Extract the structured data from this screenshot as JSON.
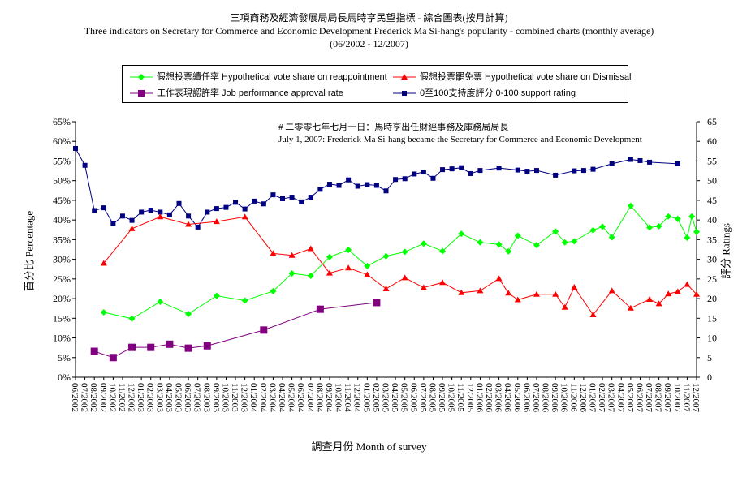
{
  "titles": {
    "line1": "三項商務及經濟發展局局長馬時亨民望指標 - 綜合圖表(按月計算)",
    "line2": "Three indicators on Secretary for Commerce and Economic Development Frederick Ma Si-hang's popularity - combined charts (monthly average)",
    "line3": "(06/2002 - 12/2007)"
  },
  "annotation": {
    "line1": "# 二零零七年七月一日：馬時亨出任財經事務及庫務局局長",
    "line2": "July 1, 2007: Frederick Ma Si-hang became the Secretary for Commerce and Economic Development"
  },
  "axes": {
    "x_title": "調查月份 Month of survey",
    "y_left_title": "百分比 Percentage",
    "y_right_title": "評分 Ratings"
  },
  "legend": [
    {
      "key": "reappoint",
      "label": "假想投票續任率 Hypothetical vote share on reappointment"
    },
    {
      "key": "dismiss",
      "label": "假想投票罷免票 Hypothetical vote share on Dismissal"
    },
    {
      "key": "approval",
      "label": "工作表現認許率 Job performance approval rate"
    },
    {
      "key": "rating",
      "label": "0至100支持度評分 0-100 support rating"
    }
  ],
  "colors": {
    "reappoint": "#00ff00",
    "dismiss": "#ff0000",
    "approval": "#800080",
    "rating": "#000080"
  },
  "chart_data": {
    "type": "line",
    "x": [
      "06/2002",
      "07/2002",
      "08/2002",
      "09/2002",
      "10/2002",
      "11/2002",
      "12/2002",
      "01/2003",
      "02/2003",
      "03/2003",
      "04/2003",
      "05/2003",
      "06/2003",
      "07/2003",
      "08/2003",
      "09/2003",
      "10/2003",
      "11/2003",
      "12/2003",
      "01/2004",
      "02/2004",
      "03/2004",
      "04/2004",
      "05/2004",
      "06/2004",
      "07/2004",
      "08/2004",
      "09/2004",
      "10/2004",
      "11/2004",
      "12/2004",
      "01/2005",
      "02/2005",
      "03/2005",
      "04/2005",
      "05/2005",
      "06/2005",
      "07/2005",
      "08/2005",
      "09/2005",
      "10/2005",
      "11/2005",
      "12/2005",
      "01/2006",
      "02/2006",
      "03/2006",
      "04/2006",
      "05/2006",
      "06/2006",
      "07/2006",
      "08/2006",
      "09/2006",
      "10/2006",
      "11/2006",
      "12/2006",
      "01/2007",
      "02/2007",
      "03/2007",
      "04/2007",
      "05/2007",
      "06/2007",
      "07/2007",
      "08/2007",
      "09/2007",
      "10/2007",
      "11/2007",
      "12/2007"
    ],
    "y_left": {
      "min": 0,
      "max": 65,
      "step": 5,
      "unit": "%"
    },
    "y_right": {
      "min": 0,
      "max": 65,
      "step": 5
    },
    "y_left_ticks": [
      "0%",
      "5%",
      "10%",
      "15%",
      "20%",
      "25%",
      "30%",
      "35%",
      "40%",
      "45%",
      "50%",
      "55%",
      "60%",
      "65%"
    ],
    "y_right_ticks": [
      "0",
      "5",
      "10",
      "15",
      "20",
      "25",
      "30",
      "35",
      "40",
      "45",
      "50",
      "55",
      "60",
      "65"
    ],
    "series": [
      {
        "name": "0至100支持度評分 0-100 support rating",
        "key": "rating",
        "marker": "square",
        "axis": "right",
        "points": [
          [
            "06/2002",
            58.2
          ],
          [
            "07/2002",
            53.9
          ],
          [
            "08/2002",
            42.4
          ],
          [
            "09/2002",
            43.1
          ],
          [
            "10/2002",
            39.0
          ],
          [
            "11/2002",
            41.0
          ],
          [
            "12/2002",
            39.9
          ],
          [
            "01/2003",
            42.0
          ],
          [
            "02/2003",
            42.5
          ],
          [
            "03/2003",
            42.0
          ],
          [
            "04/2003",
            41.3
          ],
          [
            "05/2003",
            44.2
          ],
          [
            "06/2003",
            41.0
          ],
          [
            "07/2003",
            38.2
          ],
          [
            "08/2003",
            42.0
          ],
          [
            "09/2003",
            42.9
          ],
          [
            "10/2003",
            43.2
          ],
          [
            "11/2003",
            44.5
          ],
          [
            "12/2003",
            42.8
          ],
          [
            "01/2004",
            44.8
          ],
          [
            "02/2004",
            44.1
          ],
          [
            "03/2004",
            46.4
          ],
          [
            "04/2004",
            45.4
          ],
          [
            "05/2004",
            45.8
          ],
          [
            "06/2004",
            44.6
          ],
          [
            "07/2004",
            45.8
          ],
          [
            "08/2004",
            47.8
          ],
          [
            "09/2004",
            49.1
          ],
          [
            "10/2004",
            48.8
          ],
          [
            "11/2004",
            50.2
          ],
          [
            "12/2004",
            48.6
          ],
          [
            "01/2005",
            49.0
          ],
          [
            "02/2005",
            48.8
          ],
          [
            "03/2005",
            47.4
          ],
          [
            "04/2005",
            50.3
          ],
          [
            "05/2005",
            50.5
          ],
          [
            "06/2005",
            51.7
          ],
          [
            "07/2005",
            52.2
          ],
          [
            "08/2005",
            50.6
          ],
          [
            "09/2005",
            52.8
          ],
          [
            "10/2005",
            53.0
          ],
          [
            "11/2005",
            53.3
          ],
          [
            "12/2005",
            51.8
          ],
          [
            "01/2006",
            52.6
          ],
          [
            "03/2006",
            53.2
          ],
          [
            "05/2006",
            52.7
          ],
          [
            "06/2006",
            52.4
          ],
          [
            "07/2006",
            52.6
          ],
          [
            "09/2006",
            51.4
          ],
          [
            "11/2006",
            52.5
          ],
          [
            "12/2006",
            52.6
          ],
          [
            "01/2007",
            52.9
          ],
          [
            "03/2007",
            54.3
          ],
          [
            "05/2007",
            55.4
          ],
          [
            "06/2007",
            55.1
          ],
          [
            "07/2007",
            54.7
          ],
          [
            "10/2007",
            54.3
          ]
        ]
      },
      {
        "name": "假想投票續任率 Hypothetical vote share on reappointment",
        "key": "reappoint",
        "marker": "diamond",
        "axis": "left",
        "points": [
          [
            "09/2002",
            16.5
          ],
          [
            "12/2002",
            14.9
          ],
          [
            "03/2003",
            19.2
          ],
          [
            "06/2003",
            16.1
          ],
          [
            "09/2003",
            20.7
          ],
          [
            "12/2003",
            19.5
          ],
          [
            "03/2004",
            21.9
          ],
          [
            "05/2004",
            26.4
          ],
          [
            "07/2004",
            25.8
          ],
          [
            "09/2004",
            30.6
          ],
          [
            "11/2004",
            32.4
          ],
          [
            "01/2005",
            28.3
          ],
          [
            "03/2005",
            30.8
          ],
          [
            "05/2005",
            31.9
          ],
          [
            "07/2005",
            34.0
          ],
          [
            "09/2005",
            32.1
          ],
          [
            "11/2005",
            36.5
          ],
          [
            "01/2006",
            34.3
          ],
          [
            "03/2006",
            33.8
          ],
          [
            "04/2006",
            32.0
          ],
          [
            "05/2006",
            36.0
          ],
          [
            "07/2006",
            33.6
          ],
          [
            "09/2006",
            37.1
          ],
          [
            "10/2006",
            34.3
          ],
          [
            "11/2006",
            34.6
          ],
          [
            "01/2007",
            37.4
          ],
          [
            "02/2007",
            38.3
          ],
          [
            "03/2007",
            35.6
          ],
          [
            "05/2007",
            43.6
          ],
          [
            "07/2007",
            38.1
          ],
          [
            "08/2007",
            38.4
          ],
          [
            "09/2007",
            40.9
          ],
          [
            "10/2007",
            40.3
          ],
          [
            "11/2007",
            35.5
          ],
          [
            "12/2007",
            40.9
          ],
          [
            "12/2007",
            37.0
          ]
        ]
      },
      {
        "name": "假想投票罷免票 Hypothetical vote share on Dismissal",
        "key": "dismiss",
        "marker": "triangle",
        "axis": "left",
        "points": [
          [
            "09/2002",
            29.0
          ],
          [
            "12/2002",
            37.8
          ],
          [
            "03/2003",
            40.8
          ],
          [
            "06/2003",
            38.9
          ],
          [
            "09/2003",
            39.6
          ],
          [
            "12/2003",
            40.8
          ],
          [
            "03/2004",
            31.5
          ],
          [
            "05/2004",
            31.0
          ],
          [
            "07/2004",
            32.7
          ],
          [
            "09/2004",
            26.5
          ],
          [
            "11/2004",
            27.8
          ],
          [
            "01/2005",
            26.1
          ],
          [
            "03/2005",
            22.5
          ],
          [
            "05/2005",
            25.3
          ],
          [
            "07/2005",
            22.8
          ],
          [
            "09/2005",
            24.1
          ],
          [
            "11/2005",
            21.5
          ],
          [
            "01/2006",
            22.0
          ],
          [
            "03/2006",
            25.1
          ],
          [
            "04/2006",
            21.4
          ],
          [
            "05/2006",
            19.7
          ],
          [
            "07/2006",
            21.1
          ],
          [
            "09/2006",
            21.1
          ],
          [
            "10/2006",
            17.8
          ],
          [
            "11/2006",
            22.9
          ],
          [
            "01/2007",
            15.9
          ],
          [
            "03/2007",
            22.0
          ],
          [
            "05/2007",
            17.6
          ],
          [
            "07/2007",
            19.8
          ],
          [
            "08/2007",
            18.7
          ],
          [
            "09/2007",
            21.2
          ],
          [
            "10/2007",
            21.8
          ],
          [
            "11/2007",
            23.6
          ],
          [
            "12/2007",
            21.1
          ]
        ]
      },
      {
        "name": "工作表現認許率 Job performance approval rate",
        "key": "approval",
        "marker": "square",
        "axis": "left",
        "points": [
          [
            "08/2002",
            6.6
          ],
          [
            "10/2002",
            5.0
          ],
          [
            "12/2002",
            7.6
          ],
          [
            "02/2003",
            7.6
          ],
          [
            "04/2003",
            8.4
          ],
          [
            "06/2003",
            7.4
          ],
          [
            "08/2003",
            8.0
          ],
          [
            "02/2004",
            12.0
          ],
          [
            "08/2004",
            17.3
          ],
          [
            "02/2005",
            19.0
          ]
        ]
      }
    ]
  }
}
